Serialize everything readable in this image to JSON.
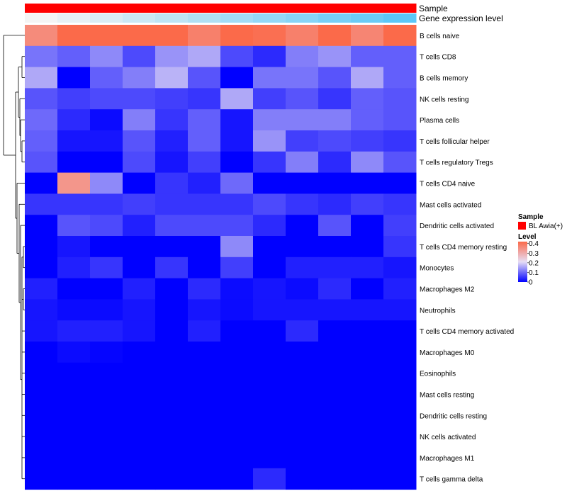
{
  "chart_data": {
    "type": "heatmap",
    "title": "",
    "annotation_tracks": [
      "Sample",
      "Gene expression level"
    ],
    "legend": {
      "sample_title": "Sample",
      "sample_entry": "BL Awia(+)",
      "level_title": "Level",
      "level_ticks": [
        0.4,
        0.3,
        0.2,
        0.1,
        0
      ],
      "level_tick_labels": [
        "0.4",
        "0.3",
        "0.2",
        "0.1",
        "0"
      ]
    },
    "colors": {
      "low": "#0000ff",
      "mid": "#e6ddf5",
      "high": "#fb6a4a",
      "sample": "#ff0000",
      "expr_low": "#f4f4f4",
      "expr_high": "#4fc3f7",
      "dendrogram": "#000000"
    },
    "value_range": [
      0,
      0.42
    ],
    "column_expression_levels": [
      0.0,
      0.08,
      0.16,
      0.25,
      0.33,
      0.41,
      0.5,
      0.58,
      0.66,
      0.75,
      0.83,
      0.92
    ],
    "rows": [
      {
        "label": "B cells naive",
        "values": [
          0.36,
          0.44,
          0.46,
          0.42,
          0.43,
          0.38,
          0.46,
          0.41,
          0.38,
          0.44,
          0.37,
          0.45
        ]
      },
      {
        "label": "T cells CD8",
        "values": [
          0.11,
          0.09,
          0.13,
          0.07,
          0.14,
          0.16,
          0.07,
          0.04,
          0.12,
          0.14,
          0.09,
          0.09
        ]
      },
      {
        "label": "B cells memory",
        "values": [
          0.16,
          0.0,
          0.09,
          0.12,
          0.17,
          0.08,
          0.0,
          0.11,
          0.11,
          0.08,
          0.16,
          0.09
        ]
      },
      {
        "label": "NK cells resting",
        "values": [
          0.08,
          0.06,
          0.07,
          0.07,
          0.06,
          0.05,
          0.16,
          0.06,
          0.08,
          0.05,
          0.09,
          0.08
        ]
      },
      {
        "label": "Plasma cells",
        "values": [
          0.1,
          0.04,
          0.01,
          0.12,
          0.05,
          0.09,
          0.02,
          0.12,
          0.12,
          0.12,
          0.09,
          0.08
        ]
      },
      {
        "label": "T cells follicular helper",
        "values": [
          0.09,
          0.02,
          0.02,
          0.08,
          0.03,
          0.09,
          0.02,
          0.14,
          0.06,
          0.07,
          0.06,
          0.05
        ]
      },
      {
        "label": "T cells regulatory  Tregs",
        "values": [
          0.08,
          0.0,
          0.0,
          0.07,
          0.02,
          0.06,
          0.0,
          0.05,
          0.12,
          0.04,
          0.13,
          0.08
        ]
      },
      {
        "label": "T cells CD4 naive",
        "values": [
          0.0,
          0.34,
          0.13,
          0.0,
          0.05,
          0.03,
          0.1,
          0.0,
          0.0,
          0.0,
          0.0,
          0.0
        ]
      },
      {
        "label": "Mast cells activated",
        "values": [
          0.05,
          0.05,
          0.05,
          0.06,
          0.05,
          0.05,
          0.05,
          0.07,
          0.05,
          0.04,
          0.06,
          0.05
        ]
      },
      {
        "label": "Dendritic cells activated",
        "values": [
          0.0,
          0.08,
          0.07,
          0.03,
          0.07,
          0.07,
          0.07,
          0.04,
          0.0,
          0.08,
          0.0,
          0.06
        ]
      },
      {
        "label": "T cells CD4 memory resting",
        "values": [
          0.0,
          0.02,
          0.0,
          0.0,
          0.0,
          0.0,
          0.13,
          0.0,
          0.0,
          0.0,
          0.0,
          0.05
        ]
      },
      {
        "label": "Monocytes",
        "values": [
          0.0,
          0.03,
          0.05,
          0.0,
          0.05,
          0.0,
          0.06,
          0.0,
          0.03,
          0.03,
          0.03,
          0.02
        ]
      },
      {
        "label": "Macrophages M2",
        "values": [
          0.03,
          0.0,
          0.0,
          0.03,
          0.0,
          0.04,
          0.01,
          0.02,
          0.01,
          0.04,
          0.0,
          0.03
        ]
      },
      {
        "label": "Neutrophils",
        "values": [
          0.02,
          0.01,
          0.01,
          0.02,
          0.0,
          0.02,
          0.01,
          0.02,
          0.02,
          0.02,
          0.02,
          0.02
        ]
      },
      {
        "label": "T cells CD4 memory activated",
        "values": [
          0.02,
          0.03,
          0.03,
          0.02,
          0.0,
          0.03,
          0.0,
          0.0,
          0.04,
          0.0,
          0.0,
          0.0
        ]
      },
      {
        "label": "Macrophages M0",
        "values": [
          0.0,
          0.01,
          0.005,
          0.0,
          0.0,
          0.0,
          0.0,
          0.0,
          0.0,
          0.0,
          0.0,
          0.0
        ]
      },
      {
        "label": "Eosinophils",
        "values": [
          0.0,
          0.0,
          0.0,
          0.0,
          0.0,
          0.0,
          0.0,
          0.0,
          0.0,
          0.0,
          0.0,
          0.0
        ]
      },
      {
        "label": "Mast cells resting",
        "values": [
          0.0,
          0.0,
          0.0,
          0.0,
          0.0,
          0.0,
          0.0,
          0.0,
          0.0,
          0.0,
          0.0,
          0.0
        ]
      },
      {
        "label": "Dendritic cells resting",
        "values": [
          0.0,
          0.0,
          0.0,
          0.0,
          0.0,
          0.0,
          0.0,
          0.0,
          0.0,
          0.0,
          0.0,
          0.0
        ]
      },
      {
        "label": "NK cells activated",
        "values": [
          0.0,
          0.0,
          0.0,
          0.0,
          0.0,
          0.0,
          0.0,
          0.0,
          0.0,
          0.0,
          0.0,
          0.0
        ]
      },
      {
        "label": "Macrophages M1",
        "values": [
          0.0,
          0.0,
          0.0,
          0.0,
          0.0,
          0.0,
          0.0,
          0.0,
          0.0,
          0.0,
          0.0,
          0.0
        ]
      },
      {
        "label": "T cells gamma delta",
        "values": [
          0.0,
          0.0,
          0.0,
          0.0,
          0.0,
          0.0,
          0.0,
          0.04,
          0.0,
          0.0,
          0.0,
          0.0
        ]
      }
    ]
  }
}
